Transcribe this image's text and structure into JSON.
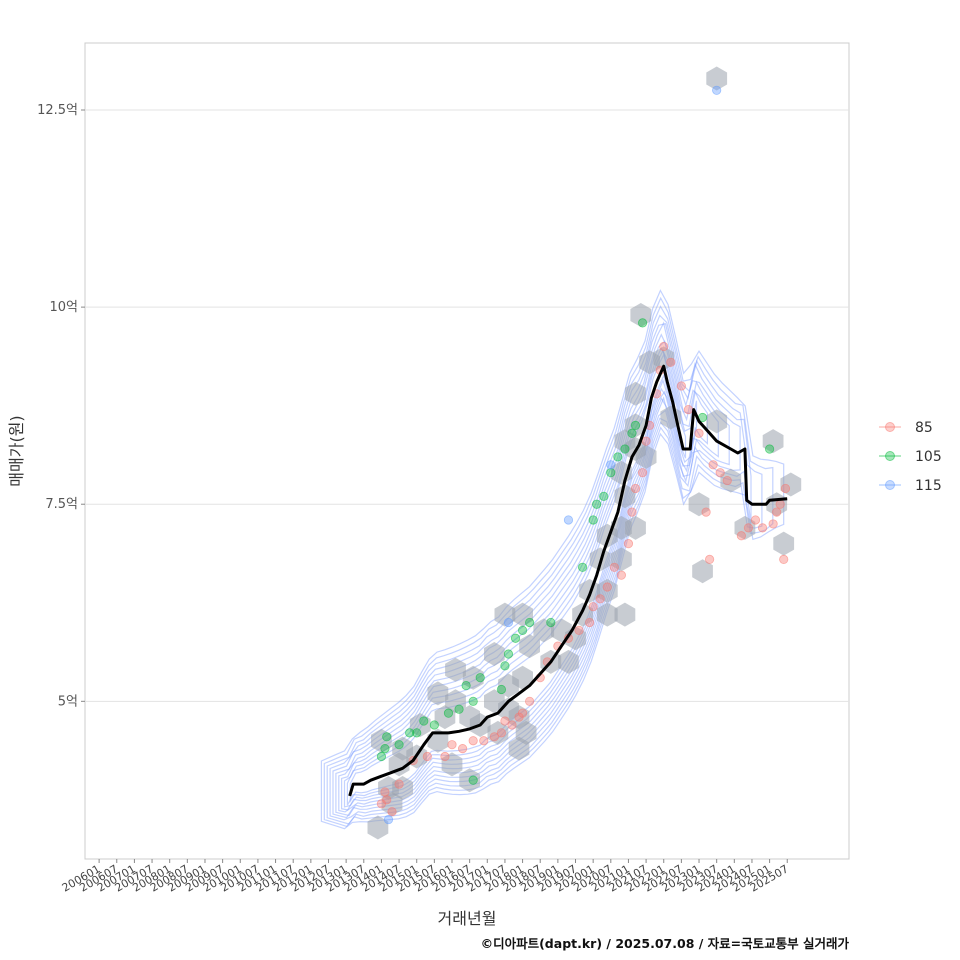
{
  "chart_data": {
    "type": "scatter",
    "xlabel": "거래년월",
    "ylabel": "매매가(원)",
    "caption": "©디아파트(dapt.kr) / 2025.07.08 / 자료=국토교통부 실거래가",
    "x_ticks": [
      "200601",
      "200607",
      "200701",
      "200707",
      "200801",
      "200807",
      "200901",
      "200907",
      "201001",
      "201007",
      "201101",
      "201107",
      "201201",
      "201207",
      "201301",
      "201307",
      "201401",
      "201407",
      "201501",
      "201507",
      "201601",
      "201607",
      "201701",
      "201707",
      "201801",
      "201807",
      "201901",
      "201907",
      "202001",
      "202007",
      "202101",
      "202107",
      "202201",
      "202207",
      "202301",
      "202307",
      "202401",
      "202407",
      "202501",
      "202507"
    ],
    "y_ticks": [
      {
        "value": 5.0,
        "label": "5억"
      },
      {
        "value": 7.5,
        "label": "7.5억"
      },
      {
        "value": 10.0,
        "label": "10억"
      },
      {
        "value": 12.5,
        "label": "12.5억"
      }
    ],
    "xlim": [
      2005.6,
      2027.25
    ],
    "ylim": [
      3.0,
      13.35
    ],
    "grid": "horizontal",
    "legend_position": "right",
    "series": [
      {
        "name": "85",
        "color": "#F8766D",
        "points": [
          [
            2014.0,
            3.7
          ],
          [
            2014.1,
            3.85
          ],
          [
            2014.15,
            3.75
          ],
          [
            2014.3,
            3.6
          ],
          [
            2014.5,
            3.95
          ],
          [
            2014.9,
            4.25
          ],
          [
            2015.3,
            4.3
          ],
          [
            2015.8,
            4.3
          ],
          [
            2016.0,
            4.45
          ],
          [
            2016.3,
            4.4
          ],
          [
            2016.6,
            4.5
          ],
          [
            2016.9,
            4.5
          ],
          [
            2017.2,
            4.55
          ],
          [
            2017.4,
            4.6
          ],
          [
            2017.5,
            4.75
          ],
          [
            2017.7,
            4.7
          ],
          [
            2017.9,
            4.8
          ],
          [
            2018.0,
            4.85
          ],
          [
            2018.2,
            5.0
          ],
          [
            2018.5,
            5.3
          ],
          [
            2018.7,
            5.5
          ],
          [
            2019.0,
            5.7
          ],
          [
            2019.3,
            5.8
          ],
          [
            2019.6,
            5.9
          ],
          [
            2019.9,
            6.0
          ],
          [
            2020.0,
            6.2
          ],
          [
            2020.2,
            6.3
          ],
          [
            2020.4,
            6.45
          ],
          [
            2020.6,
            6.7
          ],
          [
            2020.8,
            6.6
          ],
          [
            2021.0,
            7.0
          ],
          [
            2021.1,
            7.4
          ],
          [
            2021.2,
            7.7
          ],
          [
            2021.4,
            7.9
          ],
          [
            2021.5,
            8.3
          ],
          [
            2021.6,
            8.5
          ],
          [
            2021.8,
            8.9
          ],
          [
            2021.9,
            9.2
          ],
          [
            2022.0,
            9.5
          ],
          [
            2022.2,
            9.3
          ],
          [
            2022.5,
            9.0
          ],
          [
            2022.7,
            8.7
          ],
          [
            2023.0,
            8.4
          ],
          [
            2023.2,
            7.4
          ],
          [
            2023.3,
            6.8
          ],
          [
            2023.4,
            8.0
          ],
          [
            2023.6,
            7.9
          ],
          [
            2023.8,
            7.8
          ],
          [
            2024.2,
            7.1
          ],
          [
            2024.4,
            7.2
          ],
          [
            2024.6,
            7.3
          ],
          [
            2024.8,
            7.2
          ],
          [
            2025.1,
            7.25
          ],
          [
            2025.2,
            7.4
          ],
          [
            2025.3,
            7.5
          ],
          [
            2025.4,
            6.8
          ],
          [
            2025.45,
            7.7
          ]
        ]
      },
      {
        "name": "105",
        "color": "#00BA38",
        "points": [
          [
            2014.0,
            4.3
          ],
          [
            2014.1,
            4.4
          ],
          [
            2014.15,
            4.55
          ],
          [
            2014.5,
            4.45
          ],
          [
            2014.8,
            4.6
          ],
          [
            2015.0,
            4.6
          ],
          [
            2015.2,
            4.75
          ],
          [
            2015.5,
            4.7
          ],
          [
            2015.9,
            4.85
          ],
          [
            2016.2,
            4.9
          ],
          [
            2016.4,
            5.2
          ],
          [
            2016.6,
            5.0
          ],
          [
            2016.8,
            5.3
          ],
          [
            2017.4,
            5.15
          ],
          [
            2017.5,
            5.45
          ],
          [
            2017.6,
            5.6
          ],
          [
            2017.8,
            5.8
          ],
          [
            2018.0,
            5.9
          ],
          [
            2018.2,
            6.0
          ],
          [
            2018.8,
            6.0
          ],
          [
            2019.7,
            6.7
          ],
          [
            2020.0,
            7.3
          ],
          [
            2020.1,
            7.5
          ],
          [
            2020.3,
            7.6
          ],
          [
            2020.5,
            7.9
          ],
          [
            2020.7,
            8.1
          ],
          [
            2020.9,
            8.2
          ],
          [
            2021.1,
            8.4
          ],
          [
            2021.2,
            8.5
          ],
          [
            2021.4,
            9.8
          ],
          [
            2023.1,
            8.6
          ],
          [
            2025.0,
            8.2
          ],
          [
            2016.6,
            4.0
          ]
        ]
      },
      {
        "name": "115",
        "color": "#619CFF",
        "points": [
          [
            2014.2,
            3.5
          ],
          [
            2017.6,
            6.0
          ],
          [
            2019.3,
            7.3
          ],
          [
            2020.5,
            8.0
          ],
          [
            2023.5,
            12.75
          ]
        ]
      }
    ],
    "median_line": [
      [
        2013.1,
        3.8
      ],
      [
        2013.2,
        3.95
      ],
      [
        2013.5,
        3.95
      ],
      [
        2013.7,
        4.0
      ],
      [
        2014.0,
        4.05
      ],
      [
        2014.3,
        4.1
      ],
      [
        2014.6,
        4.15
      ],
      [
        2014.9,
        4.25
      ],
      [
        2015.2,
        4.45
      ],
      [
        2015.45,
        4.6
      ],
      [
        2015.9,
        4.6
      ],
      [
        2016.2,
        4.62
      ],
      [
        2016.5,
        4.65
      ],
      [
        2016.8,
        4.7
      ],
      [
        2017.0,
        4.8
      ],
      [
        2017.3,
        4.85
      ],
      [
        2017.6,
        5.0
      ],
      [
        2017.9,
        5.1
      ],
      [
        2018.2,
        5.2
      ],
      [
        2018.5,
        5.35
      ],
      [
        2018.8,
        5.5
      ],
      [
        2019.1,
        5.7
      ],
      [
        2019.4,
        5.9
      ],
      [
        2019.7,
        6.15
      ],
      [
        2019.9,
        6.35
      ],
      [
        2020.1,
        6.6
      ],
      [
        2020.3,
        6.9
      ],
      [
        2020.5,
        7.15
      ],
      [
        2020.7,
        7.4
      ],
      [
        2020.9,
        7.8
      ],
      [
        2021.1,
        8.1
      ],
      [
        2021.3,
        8.25
      ],
      [
        2021.5,
        8.5
      ],
      [
        2021.65,
        8.85
      ],
      [
        2021.8,
        9.05
      ],
      [
        2022.0,
        9.25
      ],
      [
        2022.1,
        9.05
      ],
      [
        2022.25,
        8.8
      ],
      [
        2022.4,
        8.5
      ],
      [
        2022.55,
        8.2
      ],
      [
        2022.75,
        8.2
      ],
      [
        2022.85,
        8.7
      ],
      [
        2023.0,
        8.55
      ],
      [
        2023.2,
        8.45
      ],
      [
        2023.5,
        8.3
      ],
      [
        2023.9,
        8.2
      ],
      [
        2024.1,
        8.15
      ],
      [
        2024.3,
        8.2
      ],
      [
        2024.35,
        7.55
      ],
      [
        2024.5,
        7.5
      ],
      [
        2024.9,
        7.5
      ],
      [
        2025.0,
        7.55
      ],
      [
        2025.5,
        7.57
      ]
    ],
    "hexbins": [
      [
        2022.2,
        8.6
      ],
      [
        2023.0,
        7.5
      ],
      [
        2023.1,
        6.65
      ],
      [
        2023.5,
        8.55
      ],
      [
        2023.5,
        12.9
      ],
      [
        2023.9,
        7.8
      ],
      [
        2024.3,
        7.2
      ],
      [
        2025.1,
        8.3
      ],
      [
        2025.2,
        7.5
      ],
      [
        2025.4,
        7.0
      ],
      [
        2025.6,
        7.75
      ],
      [
        2021.35,
        9.9
      ],
      [
        2021.6,
        9.3
      ],
      [
        2022.0,
        9.35
      ],
      [
        2021.2,
        8.2
      ],
      [
        2020.8,
        7.9
      ],
      [
        2020.9,
        8.3
      ],
      [
        2021.2,
        8.5
      ],
      [
        2021.2,
        8.9
      ],
      [
        2021.5,
        8.1
      ],
      [
        2020.9,
        7.6
      ],
      [
        2020.8,
        7.2
      ],
      [
        2021.2,
        7.2
      ],
      [
        2020.4,
        7.1
      ],
      [
        2020.8,
        6.8
      ],
      [
        2020.2,
        6.8
      ],
      [
        2020.4,
        6.4
      ],
      [
        2019.9,
        6.4
      ],
      [
        2020.4,
        6.1
      ],
      [
        2020.9,
        6.1
      ],
      [
        2019.7,
        6.1
      ],
      [
        2019.5,
        5.8
      ],
      [
        2019.3,
        5.5
      ],
      [
        2019.1,
        5.9
      ],
      [
        2018.8,
        5.5
      ],
      [
        2018.6,
        5.9
      ],
      [
        2018.2,
        5.7
      ],
      [
        2018.0,
        6.1
      ],
      [
        2017.5,
        6.1
      ],
      [
        2018.0,
        5.3
      ],
      [
        2017.6,
        5.2
      ],
      [
        2017.2,
        5.0
      ],
      [
        2017.2,
        5.6
      ],
      [
        2017.6,
        4.9
      ],
      [
        2017.9,
        4.8
      ],
      [
        2018.1,
        4.6
      ],
      [
        2017.9,
        4.4
      ],
      [
        2017.3,
        4.6
      ],
      [
        2016.8,
        4.7
      ],
      [
        2016.5,
        4.8
      ],
      [
        2016.1,
        5.0
      ],
      [
        2015.8,
        4.8
      ],
      [
        2016.6,
        5.3
      ],
      [
        2016.1,
        5.4
      ],
      [
        2015.6,
        5.1
      ],
      [
        2015.6,
        4.5
      ],
      [
        2015.1,
        4.7
      ],
      [
        2015.0,
        4.3
      ],
      [
        2014.6,
        4.4
      ],
      [
        2014.5,
        4.2
      ],
      [
        2014.0,
        4.5
      ],
      [
        2014.2,
        3.9
      ],
      [
        2014.6,
        3.9
      ],
      [
        2016.5,
        4.0
      ],
      [
        2016.0,
        4.2
      ],
      [
        2013.9,
        3.4
      ],
      [
        2014.3,
        3.7
      ]
    ],
    "hexbin_color": "#9aa3ad",
    "density_color": "#7b9bff"
  }
}
